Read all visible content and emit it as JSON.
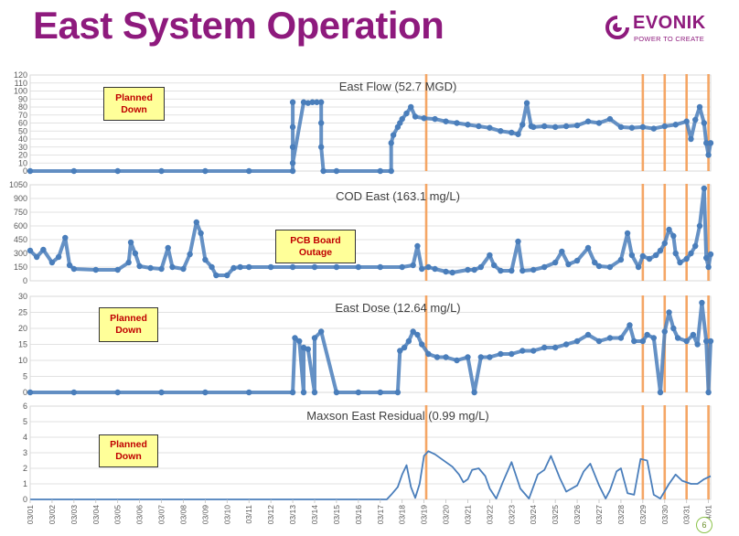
{
  "page": {
    "title": "East System Operation",
    "page_number": "6"
  },
  "logo": {
    "name": "EVONIK",
    "tagline": "POWER TO CREATE",
    "color": "#8e1a7d"
  },
  "colors": {
    "series": "#4a7ebb",
    "vline": "#f5a25d",
    "grid": "#d9d9d9",
    "title": "#8e1a7d"
  },
  "dates": [
    "03/01",
    "03/02",
    "03/03",
    "03/04",
    "03/05",
    "03/06",
    "03/07",
    "03/08",
    "03/09",
    "03/10",
    "03/11",
    "03/12",
    "03/13",
    "03/14",
    "03/15",
    "03/16",
    "03/17",
    "03/18",
    "03/19",
    "03/20",
    "03/21",
    "03/22",
    "03/23",
    "03/24",
    "03/25",
    "03/26",
    "03/27",
    "03/28",
    "03/29",
    "03/30",
    "03/31",
    "04/01"
  ],
  "event_lines_x": [
    18.1,
    28.0,
    29.0,
    30.0,
    31.0
  ],
  "callouts": {
    "flow": "Planned Down",
    "cod": "PCB Board Outage",
    "dose": "Planned Down",
    "residual": "Planned Down"
  },
  "chart_data": [
    {
      "id": "flow",
      "type": "scatter",
      "title": "East Flow (52.7 MGD)",
      "xlim": [
        0,
        31.1
      ],
      "ylim": [
        0,
        120
      ],
      "yticks": [
        0,
        10,
        20,
        30,
        40,
        50,
        60,
        70,
        80,
        90,
        100,
        110,
        120
      ],
      "x_unit": "days since 03/01",
      "points": [
        [
          0,
          0
        ],
        [
          2,
          0
        ],
        [
          4,
          0
        ],
        [
          6,
          0
        ],
        [
          8,
          0
        ],
        [
          10,
          0
        ],
        [
          12,
          0
        ],
        [
          13.4,
          0
        ],
        [
          14,
          0
        ],
        [
          16,
          0
        ],
        [
          16.5,
          0
        ],
        [
          12.0,
          86
        ],
        [
          12.5,
          86
        ],
        [
          12.7,
          85
        ],
        [
          12.9,
          86
        ],
        [
          13.1,
          86
        ],
        [
          13.3,
          86
        ],
        [
          12.0,
          55
        ],
        [
          12.0,
          30
        ],
        [
          12.0,
          10
        ],
        [
          13.3,
          60
        ],
        [
          13.3,
          30
        ],
        [
          16.5,
          35
        ],
        [
          16.6,
          45
        ],
        [
          16.8,
          55
        ],
        [
          16.9,
          60
        ],
        [
          17.0,
          65
        ],
        [
          17.2,
          72
        ],
        [
          17.4,
          80
        ],
        [
          17.6,
          68
        ],
        [
          18,
          66
        ],
        [
          18.5,
          65
        ],
        [
          19,
          62
        ],
        [
          19.5,
          60
        ],
        [
          20,
          58
        ],
        [
          20.5,
          56
        ],
        [
          21,
          54
        ],
        [
          21.5,
          50
        ],
        [
          22,
          48
        ],
        [
          22.3,
          46
        ],
        [
          22.5,
          58
        ],
        [
          22.7,
          85
        ],
        [
          22.9,
          56
        ],
        [
          23,
          55
        ],
        [
          23.5,
          56
        ],
        [
          24,
          55
        ],
        [
          24.5,
          56
        ],
        [
          25,
          57
        ],
        [
          25.5,
          62
        ],
        [
          26,
          60
        ],
        [
          26.5,
          65
        ],
        [
          27,
          55
        ],
        [
          27.5,
          54
        ],
        [
          28,
          55
        ],
        [
          28.5,
          53
        ],
        [
          29,
          56
        ],
        [
          29.5,
          58
        ],
        [
          30,
          62
        ],
        [
          30.2,
          40
        ],
        [
          30.4,
          64
        ],
        [
          30.6,
          80
        ],
        [
          30.8,
          60
        ],
        [
          30.9,
          35
        ],
        [
          31.0,
          20
        ],
        [
          31.1,
          35
        ]
      ]
    },
    {
      "id": "cod",
      "type": "scatter",
      "title": "COD East (163.1 mg/L)",
      "xlim": [
        0,
        31.1
      ],
      "ylim": [
        0,
        1050
      ],
      "yticks": [
        0,
        150,
        300,
        450,
        600,
        750,
        900,
        1050
      ],
      "points": [
        [
          0,
          330
        ],
        [
          0.3,
          260
        ],
        [
          0.6,
          340
        ],
        [
          1,
          200
        ],
        [
          1.3,
          260
        ],
        [
          1.6,
          470
        ],
        [
          1.8,
          170
        ],
        [
          2,
          130
        ],
        [
          3,
          120
        ],
        [
          4,
          120
        ],
        [
          4.5,
          200
        ],
        [
          4.6,
          420
        ],
        [
          4.8,
          300
        ],
        [
          5,
          160
        ],
        [
          5.5,
          140
        ],
        [
          6,
          130
        ],
        [
          6.3,
          360
        ],
        [
          6.5,
          150
        ],
        [
          7,
          130
        ],
        [
          7.3,
          290
        ],
        [
          7.6,
          640
        ],
        [
          7.8,
          520
        ],
        [
          8,
          230
        ],
        [
          8.3,
          150
        ],
        [
          8.5,
          60
        ],
        [
          9,
          60
        ],
        [
          9.3,
          140
        ],
        [
          9.6,
          150
        ],
        [
          10,
          150
        ],
        [
          11,
          150
        ],
        [
          12,
          150
        ],
        [
          13,
          150
        ],
        [
          14,
          150
        ],
        [
          15,
          150
        ],
        [
          16,
          150
        ],
        [
          17,
          150
        ],
        [
          17.5,
          170
        ],
        [
          17.7,
          380
        ],
        [
          17.9,
          130
        ],
        [
          18.2,
          150
        ],
        [
          18.5,
          130
        ],
        [
          19,
          100
        ],
        [
          19.3,
          90
        ],
        [
          20,
          120
        ],
        [
          20.3,
          120
        ],
        [
          20.6,
          150
        ],
        [
          21,
          280
        ],
        [
          21.2,
          170
        ],
        [
          21.5,
          110
        ],
        [
          22,
          110
        ],
        [
          22.3,
          430
        ],
        [
          22.5,
          110
        ],
        [
          23,
          120
        ],
        [
          23.5,
          150
        ],
        [
          24,
          200
        ],
        [
          24.3,
          320
        ],
        [
          24.6,
          180
        ],
        [
          25,
          220
        ],
        [
          25.5,
          360
        ],
        [
          25.8,
          200
        ],
        [
          26,
          160
        ],
        [
          26.5,
          150
        ],
        [
          27,
          230
        ],
        [
          27.3,
          520
        ],
        [
          27.5,
          280
        ],
        [
          27.8,
          150
        ],
        [
          28,
          270
        ],
        [
          28.3,
          240
        ],
        [
          28.6,
          280
        ],
        [
          28.8,
          330
        ],
        [
          29,
          410
        ],
        [
          29.2,
          560
        ],
        [
          29.4,
          490
        ],
        [
          29.5,
          300
        ],
        [
          29.7,
          200
        ],
        [
          30,
          240
        ],
        [
          30.2,
          300
        ],
        [
          30.4,
          380
        ],
        [
          30.6,
          600
        ],
        [
          30.8,
          1010
        ],
        [
          30.9,
          250
        ],
        [
          31.0,
          150
        ],
        [
          31.1,
          290
        ]
      ]
    },
    {
      "id": "dose",
      "type": "scatter",
      "title": "East Dose (12.64 mg/L)",
      "xlim": [
        0,
        31.1
      ],
      "ylim": [
        0,
        30
      ],
      "yticks": [
        0,
        5,
        10,
        15,
        20,
        25,
        30
      ],
      "points": [
        [
          0,
          0
        ],
        [
          2,
          0
        ],
        [
          4,
          0
        ],
        [
          6,
          0
        ],
        [
          8,
          0
        ],
        [
          10,
          0
        ],
        [
          12,
          0
        ],
        [
          12.5,
          0
        ],
        [
          13,
          0
        ],
        [
          14,
          0
        ],
        [
          15,
          0
        ],
        [
          16,
          0
        ],
        [
          16.8,
          0
        ],
        [
          12.1,
          17
        ],
        [
          12.3,
          16
        ],
        [
          12.5,
          14
        ],
        [
          12.7,
          13.5
        ],
        [
          13.0,
          17
        ],
        [
          13.3,
          19
        ],
        [
          16.9,
          13
        ],
        [
          17.1,
          14
        ],
        [
          17.3,
          16
        ],
        [
          17.5,
          19
        ],
        [
          17.7,
          18
        ],
        [
          17.9,
          15
        ],
        [
          18.2,
          12
        ],
        [
          18.6,
          11
        ],
        [
          19,
          11
        ],
        [
          19.5,
          10
        ],
        [
          20,
          11
        ],
        [
          20.3,
          0
        ],
        [
          20.6,
          11
        ],
        [
          21,
          11
        ],
        [
          21.5,
          12
        ],
        [
          22,
          12
        ],
        [
          22.5,
          13
        ],
        [
          23,
          13
        ],
        [
          23.5,
          14
        ],
        [
          24,
          14
        ],
        [
          24.5,
          15
        ],
        [
          25,
          16
        ],
        [
          25.5,
          18
        ],
        [
          26,
          16
        ],
        [
          26.5,
          17
        ],
        [
          27,
          17
        ],
        [
          27.4,
          21
        ],
        [
          27.6,
          16
        ],
        [
          28,
          16
        ],
        [
          28.2,
          18
        ],
        [
          28.5,
          17
        ],
        [
          28.8,
          0
        ],
        [
          29,
          19
        ],
        [
          29.2,
          25
        ],
        [
          29.4,
          20
        ],
        [
          29.6,
          17
        ],
        [
          30,
          16
        ],
        [
          30.3,
          18
        ],
        [
          30.5,
          15
        ],
        [
          30.7,
          28
        ],
        [
          30.9,
          16
        ],
        [
          31.0,
          0
        ],
        [
          31.1,
          16
        ]
      ]
    },
    {
      "id": "residual",
      "type": "line",
      "title": "Maxson East Residual (0.99 mg/L)",
      "xlim": [
        0,
        31.1
      ],
      "ylim": [
        0,
        6
      ],
      "yticks": [
        0,
        1,
        2,
        3,
        4,
        5,
        6
      ],
      "x": [
        0,
        16.3,
        16.5,
        16.8,
        17.0,
        17.2,
        17.4,
        17.6,
        17.8,
        18.0,
        18.2,
        18.5,
        19.0,
        19.3,
        19.6,
        19.8,
        20.0,
        20.2,
        20.5,
        20.8,
        21.0,
        21.3,
        21.6,
        22.0,
        22.4,
        22.8,
        23.2,
        23.5,
        23.8,
        24.2,
        24.5,
        25.0,
        25.3,
        25.6,
        26.0,
        26.3,
        26.5,
        26.8,
        27.0,
        27.3,
        27.6,
        27.9,
        28.2,
        28.5,
        28.8,
        29.2,
        29.5,
        29.8,
        30.2,
        30.5,
        30.8,
        31.1
      ],
      "y": [
        0,
        0,
        0.3,
        0.8,
        1.6,
        2.2,
        0.8,
        0.1,
        1.0,
        2.8,
        3.1,
        2.9,
        2.4,
        2.1,
        1.6,
        1.1,
        1.3,
        1.9,
        2.0,
        1.5,
        0.7,
        0.05,
        1.1,
        2.4,
        0.7,
        0.05,
        1.6,
        1.9,
        2.8,
        1.4,
        0.5,
        0.9,
        1.8,
        2.3,
        0.9,
        0.05,
        0.6,
        1.8,
        2.0,
        0.4,
        0.3,
        2.6,
        2.5,
        0.3,
        0.05,
        1.0,
        1.6,
        1.2,
        1.0,
        1.0,
        1.3,
        1.5
      ]
    }
  ]
}
